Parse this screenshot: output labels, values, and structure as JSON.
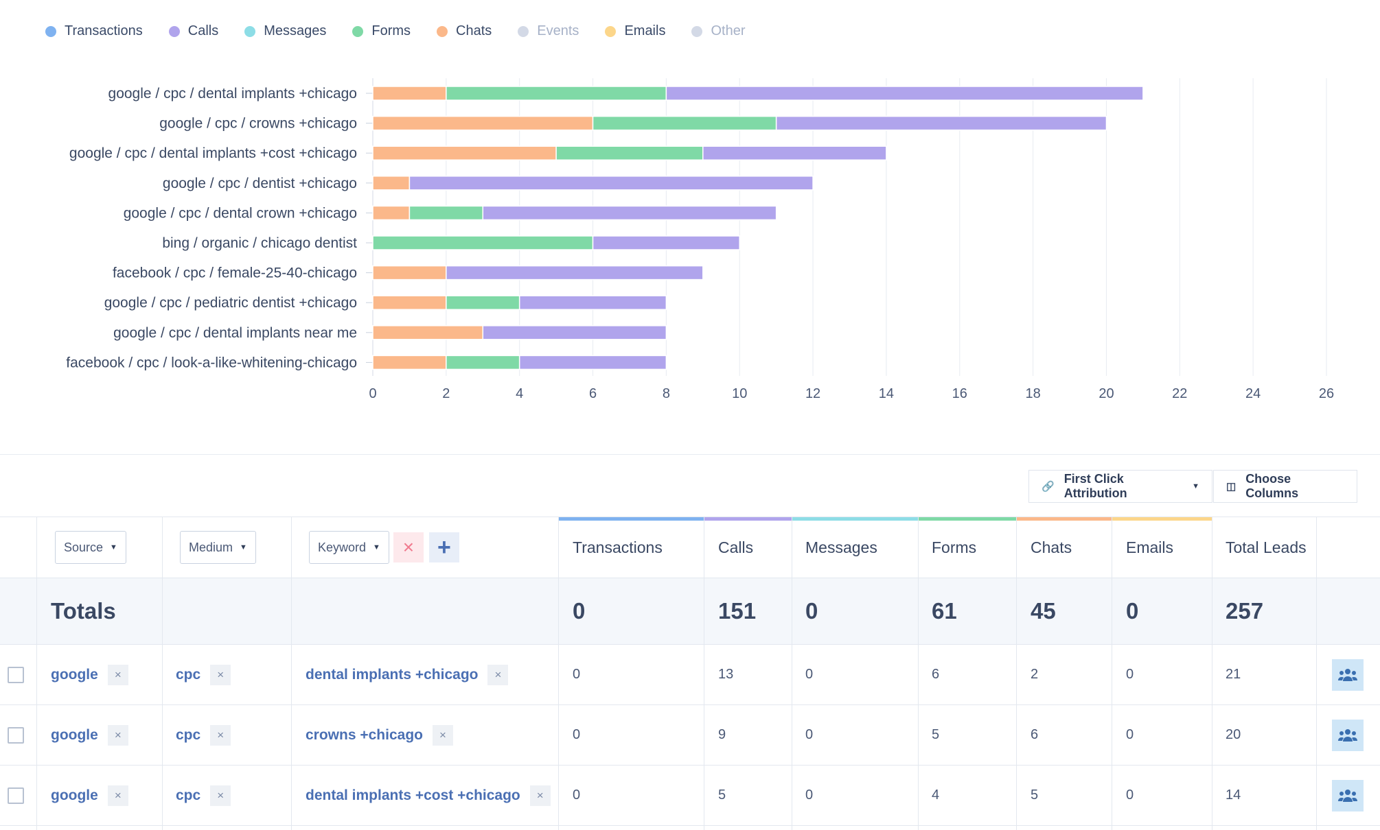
{
  "legend": [
    {
      "label": "Transactions",
      "color": "#7fb2f0",
      "active": true
    },
    {
      "label": "Calls",
      "color": "#b0a4ec",
      "active": true
    },
    {
      "label": "Messages",
      "color": "#8ddde6",
      "active": true
    },
    {
      "label": "Forms",
      "color": "#7fd9a6",
      "active": true
    },
    {
      "label": "Chats",
      "color": "#fbb88a",
      "active": true
    },
    {
      "label": "Events",
      "color": "#d3d9e6",
      "active": false
    },
    {
      "label": "Emails",
      "color": "#fcd68a",
      "active": true
    },
    {
      "label": "Other",
      "color": "#d3d9e6",
      "active": false
    }
  ],
  "chart_data": {
    "type": "bar",
    "orientation": "horizontal",
    "stacked": true,
    "categories": [
      "google / cpc / dental implants +chicago",
      "google / cpc / crowns +chicago",
      "google / cpc / dental implants +cost +chicago",
      "google / cpc / dentist +chicago",
      "google / cpc / dental crown +chicago",
      "bing / organic / chicago dentist",
      "facebook / cpc / female-25-40-chicago",
      "google / cpc / pediatric dentist +chicago",
      "google / cpc / dental implants near me",
      "facebook / cpc / look-a-like-whitening-chicago"
    ],
    "series": [
      {
        "name": "Chats",
        "color": "#fbb88a",
        "values": [
          2,
          6,
          5,
          1,
          1,
          0,
          2,
          2,
          3,
          2
        ]
      },
      {
        "name": "Forms",
        "color": "#7fd9a6",
        "values": [
          6,
          5,
          4,
          0,
          2,
          6,
          0,
          2,
          0,
          2
        ]
      },
      {
        "name": "Calls",
        "color": "#b0a4ec",
        "values": [
          13,
          9,
          5,
          11,
          8,
          4,
          7,
          4,
          5,
          4
        ]
      }
    ],
    "xlim": [
      0,
      26
    ],
    "xticks": [
      "0",
      "2",
      "4",
      "6",
      "8",
      "10",
      "12",
      "14",
      "16",
      "18",
      "20",
      "22",
      "24",
      "26"
    ],
    "grid": true
  },
  "toolbar": {
    "attribution_label": "First Click Attribution",
    "choose_columns_label": "Choose Columns"
  },
  "table": {
    "dimension_selects": [
      "Source",
      "Medium",
      "Keyword"
    ],
    "metric_columns": [
      {
        "label": "Transactions",
        "color": "#7fb2f0"
      },
      {
        "label": "Calls",
        "color": "#b0a4ec"
      },
      {
        "label": "Messages",
        "color": "#8ddde6"
      },
      {
        "label": "Forms",
        "color": "#7fd9a6"
      },
      {
        "label": "Chats",
        "color": "#fbb88a"
      },
      {
        "label": "Emails",
        "color": "#fcd68a"
      },
      {
        "label": "Total Leads",
        "color": ""
      }
    ],
    "totals": {
      "label": "Totals",
      "values": [
        "0",
        "151",
        "0",
        "61",
        "45",
        "0",
        "257"
      ]
    },
    "rows": [
      {
        "source": "google",
        "medium": "cpc",
        "keyword": "dental implants +chicago",
        "values": [
          "0",
          "13",
          "0",
          "6",
          "2",
          "0",
          "21"
        ]
      },
      {
        "source": "google",
        "medium": "cpc",
        "keyword": "crowns +chicago",
        "values": [
          "0",
          "9",
          "0",
          "5",
          "6",
          "0",
          "20"
        ]
      },
      {
        "source": "google",
        "medium": "cpc",
        "keyword": "dental implants +cost +chicago",
        "values": [
          "0",
          "5",
          "0",
          "4",
          "5",
          "0",
          "14"
        ]
      }
    ]
  }
}
